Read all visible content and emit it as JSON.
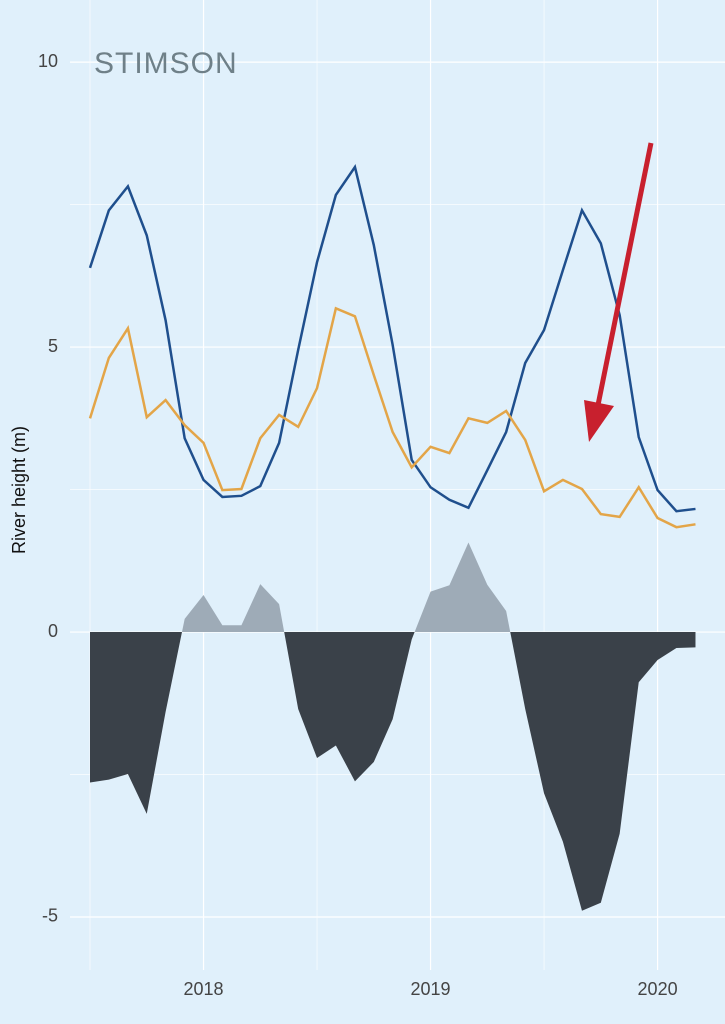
{
  "chart_data": {
    "type": "line",
    "logo": "STIMSON",
    "y_label": "River height (m)",
    "x": [
      2017.5,
      2017.583,
      2017.667,
      2017.75,
      2017.833,
      2017.917,
      2018,
      2018.083,
      2018.167,
      2018.25,
      2018.333,
      2018.417,
      2018.5,
      2018.583,
      2018.667,
      2018.75,
      2018.833,
      2018.917,
      2019,
      2019.083,
      2019.167,
      2019.25,
      2019.333,
      2019.417,
      2019.5,
      2019.583,
      2019.667,
      2019.75,
      2019.833,
      2019.917,
      2020,
      2020.083,
      2020.167
    ],
    "series": [
      {
        "color": "#1f4f8d",
        "values": [
          6.39,
          7.4,
          7.82,
          6.96,
          5.47,
          3.4,
          2.67,
          2.37,
          2.39,
          2.56,
          3.32,
          4.95,
          6.49,
          7.67,
          8.16,
          6.79,
          5.04,
          3.02,
          2.54,
          2.32,
          2.18,
          2.84,
          3.51,
          4.72,
          5.3,
          6.35,
          7.4,
          6.82,
          5.56,
          3.42,
          2.49,
          2.12,
          2.16
        ]
      },
      {
        "color": "#e3a548",
        "values": [
          3.75,
          4.81,
          5.33,
          3.77,
          4.07,
          3.63,
          3.32,
          2.49,
          2.51,
          3.4,
          3.81,
          3.6,
          4.28,
          5.68,
          5.54,
          4.51,
          3.51,
          2.89,
          3.25,
          3.14,
          3.75,
          3.67,
          3.88,
          3.37,
          2.47,
          2.67,
          2.51,
          2.07,
          2.02,
          2.54,
          2.0,
          1.84,
          1.89
        ]
      },
      {
        "type": "area",
        "color": "#3a4149",
        "positive_color": "#9eabb7",
        "values": [
          -2.64,
          -2.59,
          -2.49,
          -3.19,
          -1.4,
          0.23,
          0.65,
          0.12,
          0.12,
          0.84,
          0.49,
          -1.35,
          -2.21,
          -1.99,
          -2.62,
          -2.28,
          -1.53,
          -0.13,
          0.71,
          0.82,
          1.57,
          0.83,
          0.37,
          -1.35,
          -2.83,
          -3.68,
          -4.89,
          -4.75,
          -3.54,
          -0.88,
          -0.49,
          -0.28,
          -0.27
        ]
      }
    ],
    "xlim": [
      2017.5,
      2020.297
    ],
    "xticks": [
      2018,
      2019,
      2020
    ],
    "ylim": [
      -5.93,
      11.09
    ],
    "yticks": [
      -5,
      0,
      5,
      10
    ],
    "grid": true
  }
}
